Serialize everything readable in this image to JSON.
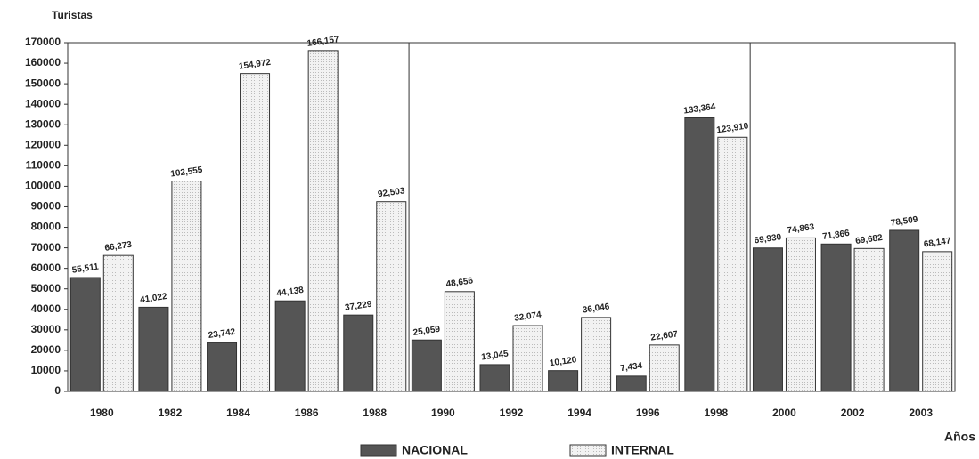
{
  "chart_data": {
    "type": "bar",
    "y_label": "Turistas",
    "x_label": "Años",
    "categories": [
      "1980",
      "1982",
      "1984",
      "1986",
      "1988",
      "1990",
      "1992",
      "1994",
      "1996",
      "1998",
      "2000",
      "2002",
      "2003"
    ],
    "series": [
      {
        "name": "NACIONAL",
        "color": "#555555",
        "values": [
          55511,
          41022,
          23742,
          44138,
          37229,
          25059,
          13045,
          10120,
          7434,
          133364,
          69930,
          71866,
          78509
        ],
        "value_labels": [
          "55,511",
          "41,022",
          "23,742",
          "44,138",
          "37,229",
          "25,059",
          "13,045",
          "10,120",
          "7,434",
          "133,364",
          "69,930",
          "71,866",
          "78,509"
        ]
      },
      {
        "name": "INTERNAL",
        "color": "#eeeeee",
        "values": [
          66273,
          102555,
          154972,
          166157,
          92503,
          48656,
          32074,
          36046,
          22607,
          123910,
          74863,
          69682,
          68147
        ],
        "value_labels": [
          "66,273",
          "102,555",
          "154,972",
          "166,157",
          "92,503",
          "48,656",
          "32,074",
          "36,046",
          "22,607",
          "123,910",
          "74,863",
          "69,682",
          "68,147"
        ]
      }
    ],
    "ylim": [
      0,
      170000
    ],
    "yticks": [
      0,
      10000,
      20000,
      30000,
      40000,
      50000,
      60000,
      70000,
      80000,
      90000,
      100000,
      110000,
      120000,
      130000,
      140000,
      150000,
      160000,
      170000
    ],
    "legend": "bottom"
  }
}
